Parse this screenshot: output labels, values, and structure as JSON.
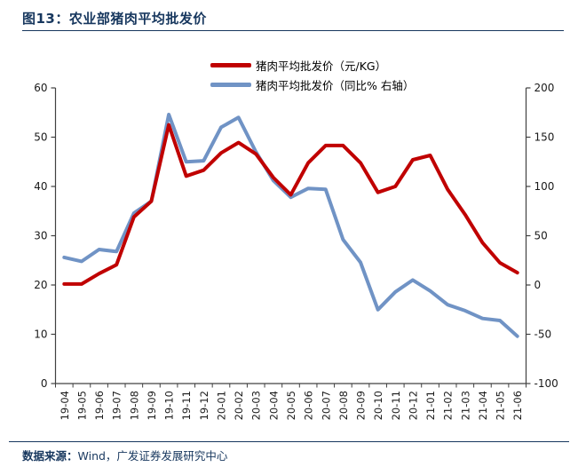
{
  "title": "图13：农业部猪肉平均批发价",
  "legend": [
    {
      "label": "猪肉平均批发价（元/KG）",
      "color": "#c00000"
    },
    {
      "label": "猪肉平均批发价（同比% 右轴）",
      "color": "#7093c5"
    }
  ],
  "footer": {
    "source_label": "数据来源：",
    "source_text": "Wind，广发证券发展研究中心"
  },
  "colors": {
    "accent_navy": "#17375e",
    "series_price": "#c00000",
    "series_yoy": "#7093c5",
    "axis": "#404040"
  },
  "chart_data": {
    "type": "line",
    "title": "农业部猪肉平均批发价",
    "categories": [
      "19-04",
      "19-05",
      "19-06",
      "19-07",
      "19-08",
      "19-09",
      "19-10",
      "19-11",
      "19-12",
      "20-01",
      "20-02",
      "20-03",
      "20-04",
      "20-05",
      "20-06",
      "20-07",
      "20-08",
      "20-09",
      "20-10",
      "20-11",
      "20-12",
      "21-01",
      "21-02",
      "21-03",
      "21-04",
      "21-05",
      "21-06"
    ],
    "series": [
      {
        "name": "猪肉平均批发价（元/KG）",
        "axis": "left",
        "color": "#c00000",
        "values": [
          20.2,
          20.2,
          22.3,
          24.1,
          33.8,
          37.0,
          52.5,
          42.1,
          43.3,
          46.8,
          48.9,
          46.6,
          41.8,
          38.3,
          44.8,
          48.3,
          48.3,
          44.8,
          38.8,
          40.0,
          45.4,
          46.3,
          39.4,
          34.3,
          28.6,
          24.5,
          22.5
        ]
      },
      {
        "name": "猪肉平均批发价（同比% 右轴）",
        "axis": "right",
        "color": "#7093c5",
        "values": [
          28,
          24,
          36,
          34,
          73,
          85,
          173,
          125,
          126,
          160,
          170,
          135,
          106,
          89,
          98,
          97,
          46,
          23,
          -25,
          -7,
          5,
          -6,
          -20,
          -26,
          -34,
          -36,
          -52
        ]
      }
    ],
    "left_axis": {
      "min": 0,
      "max": 60,
      "ticks": [
        0,
        10,
        20,
        30,
        40,
        50,
        60
      ]
    },
    "right_axis": {
      "min": -100,
      "max": 200,
      "ticks": [
        -100,
        -50,
        0,
        50,
        100,
        150,
        200
      ]
    },
    "grid": false,
    "legend_position": "top-center",
    "x_label_rotation": -90
  }
}
